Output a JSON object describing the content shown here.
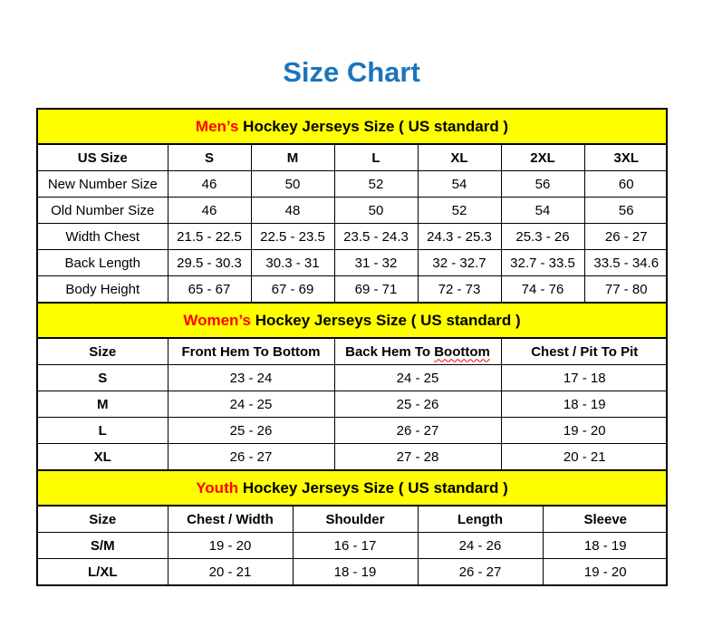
{
  "page": {
    "title": "Size Chart"
  },
  "colors": {
    "title_blue": "#1b75bc",
    "banner_yellow": "#ffff00",
    "accent_red": "#ff0000",
    "border_black": "#000000"
  },
  "mens": {
    "banner": {
      "highlight": "Men’s",
      "rest": " Hockey Jerseys Size ( US standard )"
    },
    "columns": [
      "US Size",
      "S",
      "M",
      "L",
      "XL",
      "2XL",
      "3XL"
    ],
    "rows": [
      {
        "label": "New Number Size",
        "values": [
          "46",
          "50",
          "52",
          "54",
          "56",
          "60"
        ]
      },
      {
        "label": "Old Number Size",
        "values": [
          "46",
          "48",
          "50",
          "52",
          "54",
          "56"
        ]
      },
      {
        "label": "Width Chest",
        "values": [
          "21.5 - 22.5",
          "22.5 - 23.5",
          "23.5 - 24.3",
          "24.3 - 25.3",
          "25.3 - 26",
          "26 - 27"
        ]
      },
      {
        "label": "Back Length",
        "values": [
          "29.5 - 30.3",
          "30.3 - 31",
          "31 - 32",
          "32 - 32.7",
          "32.7 - 33.5",
          "33.5 - 34.6"
        ]
      },
      {
        "label": "Body Height",
        "values": [
          "65 - 67",
          "67 - 69",
          "69 - 71",
          "72 - 73",
          "74 - 76",
          "77 - 80"
        ]
      }
    ]
  },
  "womens": {
    "banner": {
      "highlight": "Women’s",
      "rest": " Hockey Jerseys Size ( US standard )"
    },
    "columns": [
      "Size",
      "Front Hem To Bottom",
      "Back Hem To ",
      "Chest / Pit To Pit"
    ],
    "misspelled": "Boottom",
    "rows": [
      {
        "label": "S",
        "values": [
          "23 - 24",
          "24 - 25",
          "17 - 18"
        ]
      },
      {
        "label": "M",
        "values": [
          "24 - 25",
          "25 - 26",
          "18 - 19"
        ]
      },
      {
        "label": "L",
        "values": [
          "25 - 26",
          "26 - 27",
          "19 - 20"
        ]
      },
      {
        "label": "XL",
        "values": [
          "26 - 27",
          "27 - 28",
          "20 - 21"
        ]
      }
    ]
  },
  "youth": {
    "banner": {
      "highlight": "Youth",
      "rest": " Hockey Jerseys Size ( US standard )"
    },
    "columns": [
      "Size",
      "Chest / Width",
      "Shoulder",
      "Length",
      "Sleeve"
    ],
    "rows": [
      {
        "label": "S/M",
        "values": [
          "19 - 20",
          "16 - 17",
          "24 - 26",
          "18 - 19"
        ]
      },
      {
        "label": "L/XL",
        "values": [
          "20 - 21",
          "18 - 19",
          "26 - 27",
          "19 - 20"
        ]
      }
    ]
  }
}
